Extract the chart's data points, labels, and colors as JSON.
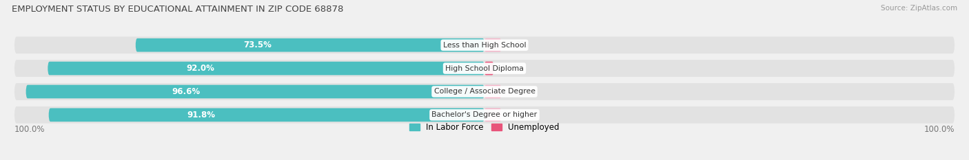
{
  "title": "EMPLOYMENT STATUS BY EDUCATIONAL ATTAINMENT IN ZIP CODE 68878",
  "source": "Source: ZipAtlas.com",
  "categories": [
    "Less than High School",
    "High School Diploma",
    "College / Associate Degree",
    "Bachelor's Degree or higher"
  ],
  "labor_force": [
    73.5,
    92.0,
    96.6,
    91.8
  ],
  "unemployed": [
    0.0,
    1.9,
    0.0,
    0.0
  ],
  "unemployed_stub": [
    3.5,
    1.9,
    3.5,
    3.5
  ],
  "labor_force_color": "#4BBFC0",
  "unemployed_color_high": "#E8537A",
  "unemployed_color_low": "#F4B8CB",
  "bg_color": "#f0f0f0",
  "bar_bg_color": "#e2e2e2",
  "title_color": "#444444",
  "text_in_bar_color": "#ffffff",
  "legend_label_labor": "In Labor Force",
  "legend_label_unemployed": "Unemployed",
  "axis_label_left": "100.0%",
  "axis_label_right": "100.0%",
  "bar_height": 0.58,
  "total_width": 100.0,
  "figsize": [
    14.06,
    2.33
  ],
  "dpi": 100
}
